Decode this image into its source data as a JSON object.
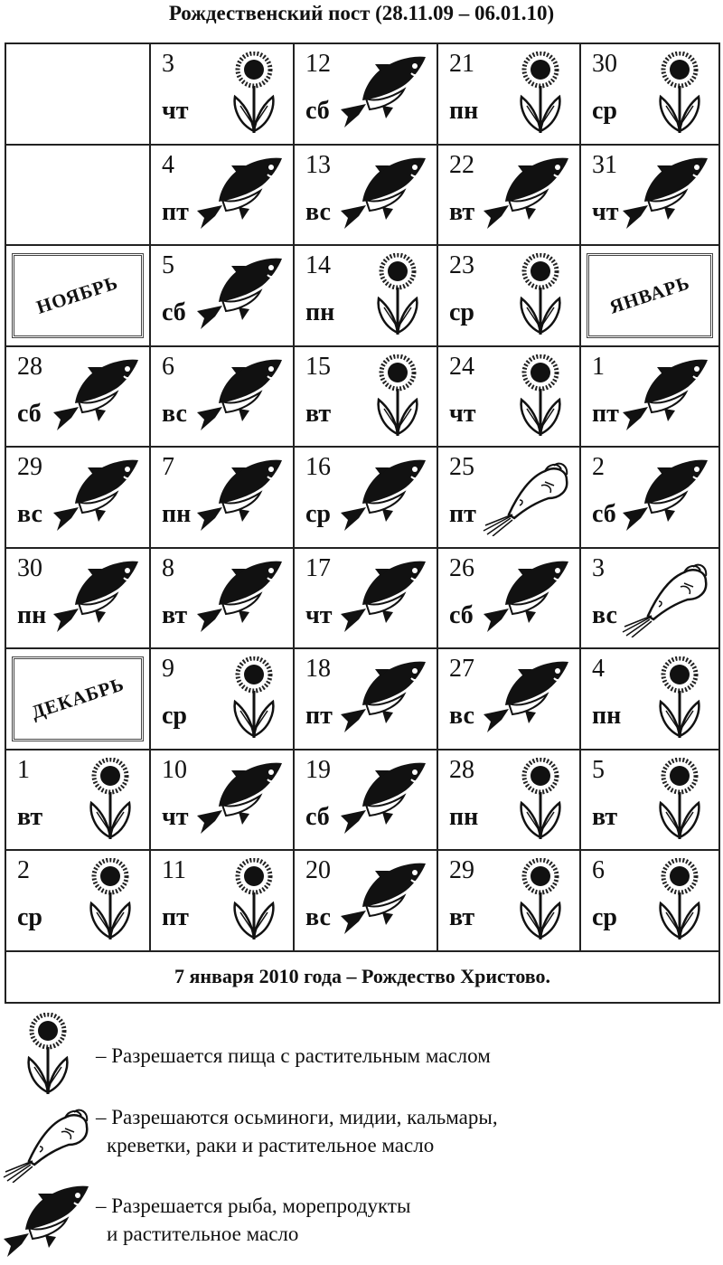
{
  "title": "Рождественский пост (28.11.09 – 06.01.10)",
  "rows": [
    [
      {},
      {
        "day": "3",
        "dow": "чт",
        "icon": "flower"
      },
      {
        "day": "12",
        "dow": "сб",
        "icon": "fish"
      },
      {
        "day": "21",
        "dow": "пн",
        "icon": "flower"
      },
      {
        "day": "30",
        "dow": "ср",
        "icon": "flower"
      }
    ],
    [
      {},
      {
        "day": "4",
        "dow": "пт",
        "icon": "fish"
      },
      {
        "day": "13",
        "dow": "вс",
        "icon": "fish"
      },
      {
        "day": "22",
        "dow": "вт",
        "icon": "fish"
      },
      {
        "day": "31",
        "dow": "чт",
        "icon": "fish"
      }
    ],
    [
      {
        "month": "НОЯБРЬ"
      },
      {
        "day": "5",
        "dow": "сб",
        "icon": "fish"
      },
      {
        "day": "14",
        "dow": "пн",
        "icon": "flower"
      },
      {
        "day": "23",
        "dow": "ср",
        "icon": "flower"
      },
      {
        "month": "ЯНВАРЬ"
      }
    ],
    [
      {
        "day": "28",
        "dow": "сб",
        "icon": "fish"
      },
      {
        "day": "6",
        "dow": "вс",
        "icon": "fish"
      },
      {
        "day": "15",
        "dow": "вт",
        "icon": "flower"
      },
      {
        "day": "24",
        "dow": "чт",
        "icon": "flower"
      },
      {
        "day": "1",
        "dow": "пт",
        "icon": "fish"
      }
    ],
    [
      {
        "day": "29",
        "dow": "вс",
        "icon": "fish"
      },
      {
        "day": "7",
        "dow": "пн",
        "icon": "fish"
      },
      {
        "day": "16",
        "dow": "ср",
        "icon": "fish"
      },
      {
        "day": "25",
        "dow": "пт",
        "icon": "shrimp"
      },
      {
        "day": "2",
        "dow": "сб",
        "icon": "fish"
      }
    ],
    [
      {
        "day": "30",
        "dow": "пн",
        "icon": "fish"
      },
      {
        "day": "8",
        "dow": "вт",
        "icon": "fish"
      },
      {
        "day": "17",
        "dow": "чт",
        "icon": "fish"
      },
      {
        "day": "26",
        "dow": "сб",
        "icon": "fish"
      },
      {
        "day": "3",
        "dow": "вс",
        "icon": "shrimp"
      }
    ],
    [
      {
        "month": "ДЕКАБРЬ"
      },
      {
        "day": "9",
        "dow": "ср",
        "icon": "flower"
      },
      {
        "day": "18",
        "dow": "пт",
        "icon": "fish"
      },
      {
        "day": "27",
        "dow": "вс",
        "icon": "fish"
      },
      {
        "day": "4",
        "dow": "пн",
        "icon": "flower"
      }
    ],
    [
      {
        "day": "1",
        "dow": "вт",
        "icon": "flower"
      },
      {
        "day": "10",
        "dow": "чт",
        "icon": "fish"
      },
      {
        "day": "19",
        "dow": "сб",
        "icon": "fish"
      },
      {
        "day": "28",
        "dow": "пн",
        "icon": "flower"
      },
      {
        "day": "5",
        "dow": "вт",
        "icon": "flower"
      }
    ],
    [
      {
        "day": "2",
        "dow": "ср",
        "icon": "flower"
      },
      {
        "day": "11",
        "dow": "пт",
        "icon": "flower"
      },
      {
        "day": "20",
        "dow": "вс",
        "icon": "fish"
      },
      {
        "day": "29",
        "dow": "вт",
        "icon": "flower"
      },
      {
        "day": "6",
        "dow": "ср",
        "icon": "flower"
      }
    ]
  ],
  "footer": "7 января 2010 года – Рождество Христово.",
  "legend": [
    {
      "icon": "flower",
      "line1": "– Разрешается пища с растительным маслом",
      "line2": ""
    },
    {
      "icon": "shrimp",
      "line1": "– Разрешаются осьминоги, мидии, кальмары,",
      "line2": "креветки, раки и растительное масло"
    },
    {
      "icon": "fish",
      "line1": "– Разрешается рыба, морепродукты",
      "line2": "и растительное масло"
    }
  ]
}
